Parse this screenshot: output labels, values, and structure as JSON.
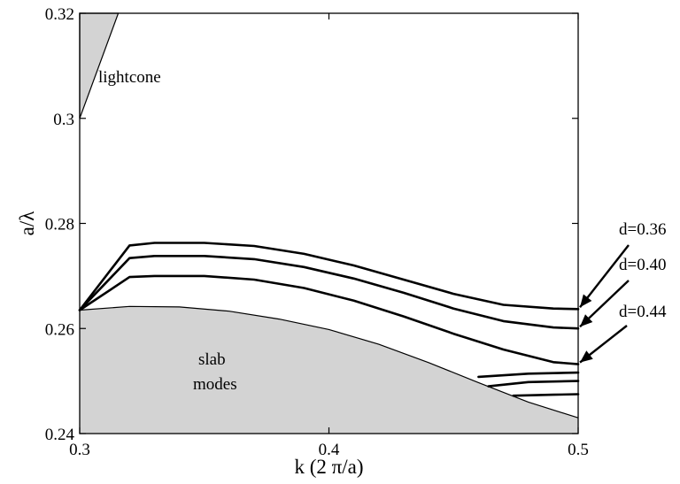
{
  "chart_data": {
    "type": "line",
    "xlabel": "k (2 π/a)",
    "ylabel": "a/λ",
    "xlim": [
      0.3,
      0.5
    ],
    "ylim": [
      0.24,
      0.32
    ],
    "xticks": [
      0.3,
      0.4,
      0.5
    ],
    "xtick_labels": [
      "0.3",
      "0.4",
      "0.5"
    ],
    "yticks": [
      0.24,
      0.26,
      0.28,
      0.3,
      0.32
    ],
    "ytick_labels": [
      "0.24",
      "0.26",
      "0.28",
      "0.3",
      "0.32"
    ],
    "fill_color": "#d3d3d3",
    "line_color": "#000000",
    "grid": false,
    "regions": [
      {
        "label": "lightcone",
        "x": [
          0.3,
          0.3,
          0.3155
        ],
        "y": [
          0.32,
          0.3,
          0.32
        ]
      },
      {
        "label": "slab modes",
        "x": [
          0.3,
          0.32,
          0.34,
          0.36,
          0.38,
          0.4,
          0.42,
          0.44,
          0.46,
          0.48,
          0.5
        ],
        "y": [
          0.2635,
          0.2642,
          0.2641,
          0.2633,
          0.2618,
          0.2598,
          0.257,
          0.2535,
          0.2497,
          0.246,
          0.243
        ]
      }
    ],
    "series": [
      {
        "name": "d=0.36",
        "x": [
          0.3,
          0.32,
          0.33,
          0.35,
          0.37,
          0.39,
          0.41,
          0.43,
          0.45,
          0.47,
          0.49,
          0.5
        ],
        "y": [
          0.2635,
          0.2758,
          0.2763,
          0.2763,
          0.2757,
          0.2742,
          0.272,
          0.2693,
          0.2666,
          0.2645,
          0.2638,
          0.2637
        ]
      },
      {
        "name": "d=0.40",
        "x": [
          0.3,
          0.32,
          0.33,
          0.35,
          0.37,
          0.39,
          0.41,
          0.43,
          0.45,
          0.47,
          0.49,
          0.5
        ],
        "y": [
          0.2635,
          0.2734,
          0.2738,
          0.2738,
          0.2732,
          0.2717,
          0.2695,
          0.2668,
          0.2638,
          0.2614,
          0.2602,
          0.26
        ]
      },
      {
        "name": "d=0.44",
        "x": [
          0.3,
          0.32,
          0.33,
          0.35,
          0.37,
          0.39,
          0.41,
          0.43,
          0.45,
          0.47,
          0.49,
          0.5
        ],
        "y": [
          0.2635,
          0.2698,
          0.27,
          0.27,
          0.2693,
          0.2677,
          0.2653,
          0.2623,
          0.259,
          0.256,
          0.2536,
          0.2532
        ]
      }
    ],
    "extra_lines": [
      {
        "x": [
          0.46,
          0.48,
          0.5
        ],
        "y": [
          0.2508,
          0.2514,
          0.2516
        ]
      },
      {
        "x": [
          0.464,
          0.48,
          0.5
        ],
        "y": [
          0.249,
          0.2498,
          0.25
        ]
      },
      {
        "x": [
          0.474,
          0.49,
          0.5
        ],
        "y": [
          0.2472,
          0.2474,
          0.2475
        ]
      }
    ],
    "annotations": [
      {
        "text": "lightcone"
      },
      {
        "text": "slab"
      },
      {
        "text": "modes"
      },
      {
        "text": "d=0.36",
        "points_to": [
          0.5,
          0.2637
        ]
      },
      {
        "text": "d=0.40",
        "points_to": [
          0.5,
          0.26
        ]
      },
      {
        "text": "d=0.44",
        "points_to": [
          0.5,
          0.2532
        ]
      }
    ]
  }
}
